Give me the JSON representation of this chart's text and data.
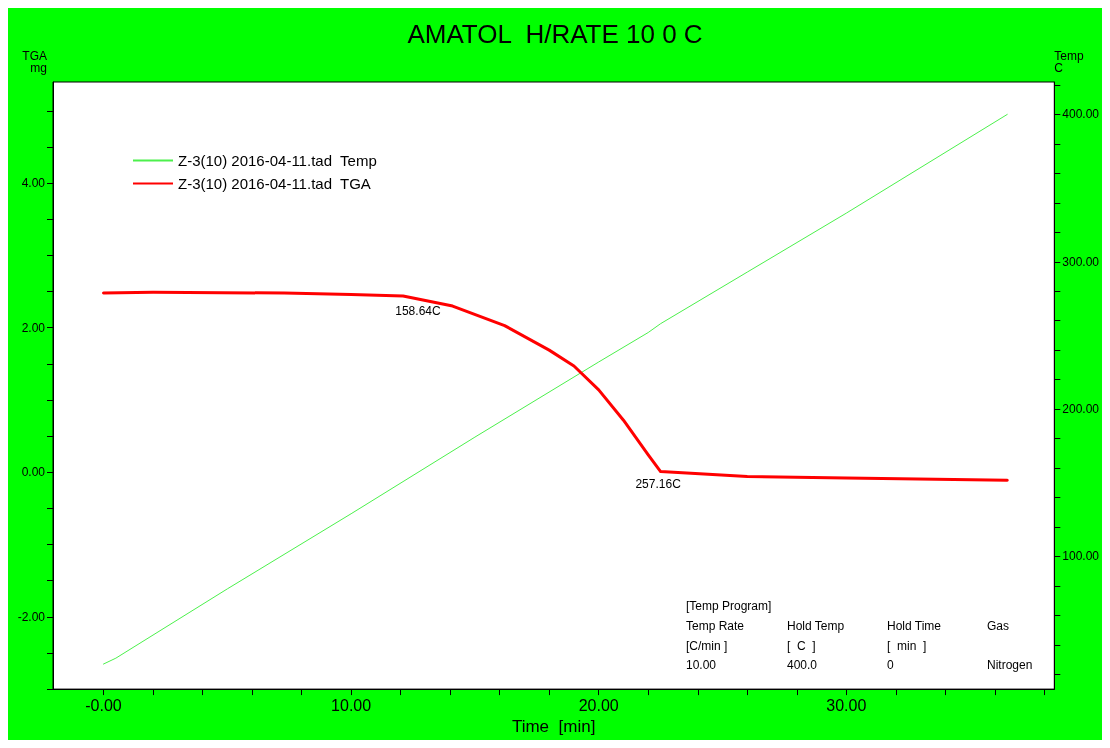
{
  "chart_data": {
    "type": "line",
    "title": "AMATOL  H/RATE 10 0 C",
    "xlabel": "Time  [min]",
    "ylabel": "TGA\nmg",
    "y2label": "Temp\nC",
    "legend": "top left",
    "grid": false,
    "marker": "none",
    "line_style": "solid",
    "xlim": [
      -2.04,
      38.4
    ],
    "ylim": [
      -3.0,
      5.4
    ],
    "y2lim": [
      10,
      422
    ],
    "xticks": [
      {
        "value": 0,
        "label": "-0.00"
      },
      {
        "value": 2,
        "label": null
      },
      {
        "value": 4,
        "label": null
      },
      {
        "value": 6,
        "label": null
      },
      {
        "value": 8,
        "label": null
      },
      {
        "value": 10,
        "label": "10.00"
      },
      {
        "value": 12,
        "label": null
      },
      {
        "value": 14,
        "label": null
      },
      {
        "value": 16,
        "label": null
      },
      {
        "value": 18,
        "label": null
      },
      {
        "value": 20,
        "label": "20.00"
      },
      {
        "value": 22,
        "label": null
      },
      {
        "value": 24,
        "label": null
      },
      {
        "value": 26,
        "label": null
      },
      {
        "value": 28,
        "label": null
      },
      {
        "value": 30,
        "label": "30.00"
      },
      {
        "value": 32,
        "label": null
      },
      {
        "value": 34,
        "label": null
      },
      {
        "value": 36,
        "label": null
      },
      {
        "value": 38,
        "label": null
      }
    ],
    "yticks": [
      {
        "value": -3,
        "label": null
      },
      {
        "value": -2.5,
        "label": null
      },
      {
        "value": -2,
        "label": "-2.00"
      },
      {
        "value": -1.5,
        "label": null
      },
      {
        "value": -1,
        "label": null
      },
      {
        "value": -0.5,
        "label": null
      },
      {
        "value": 0,
        "label": "0.00"
      },
      {
        "value": 0.5,
        "label": null
      },
      {
        "value": 1,
        "label": null
      },
      {
        "value": 1.5,
        "label": null
      },
      {
        "value": 2,
        "label": "2.00"
      },
      {
        "value": 2.5,
        "label": null
      },
      {
        "value": 3,
        "label": null
      },
      {
        "value": 3.5,
        "label": null
      },
      {
        "value": 4,
        "label": "4.00"
      },
      {
        "value": 4.5,
        "label": null
      },
      {
        "value": 5,
        "label": null
      }
    ],
    "y2ticks": [
      {
        "value": 20,
        "label": null
      },
      {
        "value": 40,
        "label": null
      },
      {
        "value": 60,
        "label": null
      },
      {
        "value": 80,
        "label": null
      },
      {
        "value": 100,
        "label": "100.00"
      },
      {
        "value": 120,
        "label": null
      },
      {
        "value": 140,
        "label": null
      },
      {
        "value": 160,
        "label": null
      },
      {
        "value": 180,
        "label": null
      },
      {
        "value": 200,
        "label": "200.00"
      },
      {
        "value": 220,
        "label": null
      },
      {
        "value": 240,
        "label": null
      },
      {
        "value": 260,
        "label": null
      },
      {
        "value": 280,
        "label": null
      },
      {
        "value": 300,
        "label": "300.00"
      },
      {
        "value": 320,
        "label": null
      },
      {
        "value": 340,
        "label": null
      },
      {
        "value": 360,
        "label": null
      },
      {
        "value": 380,
        "label": null
      },
      {
        "value": 400,
        "label": "400.00"
      },
      {
        "value": 420,
        "label": null
      }
    ],
    "series": [
      {
        "name": "Z-3(10) 2016-04-11.tad  Temp",
        "color": "#4cf04c",
        "axis": "y2",
        "x": [
          0,
          0.5,
          5,
          10,
          15,
          20,
          22,
          22.5,
          26,
          30,
          36.5
        ],
        "values": [
          27,
          31,
          78,
          129,
          181,
          232,
          252,
          258,
          293,
          333,
          400
        ]
      },
      {
        "name": "Z-3(10) 2016-04-11.tad  TGA",
        "color": "#ff0000",
        "x": [
          0,
          2,
          7.3,
          10,
          12.1,
          14.1,
          16.2,
          18,
          19,
          20,
          21,
          22,
          22.5,
          26,
          30,
          36.5
        ],
        "values": [
          2.48,
          2.49,
          2.48,
          2.46,
          2.44,
          2.3,
          2.03,
          1.69,
          1.47,
          1.14,
          0.72,
          0.24,
          0.01,
          -0.06,
          -0.08,
          -0.11
        ]
      }
    ],
    "annotations": [
      {
        "text": "158.64C",
        "x": 12.7,
        "y": 2.4
      },
      {
        "text": "257.16C",
        "x": 22.4,
        "y": 0.01
      },
      "[Temp Program]",
      "Temp Rate",
      "Hold Temp",
      "Hold Time",
      "Gas",
      "[C/min ]",
      "[  C  ]",
      "[  min  ]",
      "10.00",
      "400.0",
      "0",
      "Nitrogen"
    ]
  }
}
